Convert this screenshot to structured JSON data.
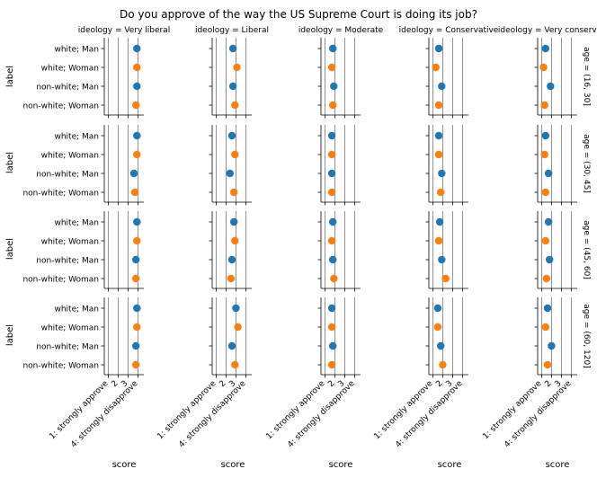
{
  "chart_data": {
    "type": "scatter",
    "title": "Do you approve of the way the US Supreme Court is doing its job?",
    "xlabel": "score",
    "ylabel": "label",
    "xlim": [
      0.6,
      4.6
    ],
    "xticks": [
      1,
      2,
      3,
      4
    ],
    "xtick_labels": [
      "1: strongly approve",
      "2",
      "3",
      "4: strongly disapprove"
    ],
    "grid": "vertical lines at x ticks",
    "legend": "none",
    "column_facet_labels": [
      "ideology = Very liberal",
      "ideology = Liberal",
      "ideology = Moderate",
      "ideology = Conservative",
      "ideology = Very conservative"
    ],
    "row_facet_labels": [
      "age = (16, 30]",
      "age = (30, 45]",
      "age = (45, 60]",
      "age = (60, 120]"
    ],
    "categories": [
      "white; Man",
      "white; Woman",
      "non-white; Man",
      "non-white; Woman"
    ],
    "category_colors": [
      "#1f77b4",
      "#ff7f0e",
      "#1f77b4",
      "#ff7f0e"
    ],
    "values": [
      [
        [
          3.9,
          3.9,
          3.9,
          3.8
        ],
        [
          2.7,
          3.1,
          2.7,
          2.9
        ],
        [
          1.8,
          1.7,
          1.9,
          1.8
        ],
        [
          1.6,
          1.3,
          1.9,
          1.6
        ],
        [
          1.4,
          1.2,
          1.9,
          1.3
        ]
      ],
      [
        [
          3.9,
          3.9,
          3.6,
          3.7
        ],
        [
          2.6,
          2.9,
          2.4,
          2.8
        ],
        [
          1.7,
          1.7,
          1.7,
          1.7
        ],
        [
          1.6,
          1.6,
          1.9,
          1.8
        ],
        [
          1.4,
          1.3,
          1.7,
          1.4
        ]
      ],
      [
        [
          3.9,
          3.9,
          3.8,
          3.8
        ],
        [
          2.8,
          2.9,
          2.6,
          2.5
        ],
        [
          1.8,
          1.7,
          1.8,
          1.9
        ],
        [
          1.7,
          1.6,
          1.9,
          2.3
        ],
        [
          1.7,
          1.4,
          1.8,
          1.5
        ]
      ],
      [
        [
          3.9,
          3.9,
          3.8,
          3.8
        ],
        [
          3.0,
          3.2,
          2.6,
          2.9
        ],
        [
          1.7,
          1.7,
          1.8,
          1.7
        ],
        [
          1.5,
          1.5,
          1.8,
          2.0
        ],
        [
          1.6,
          1.4,
          2.0,
          1.6
        ]
      ]
    ]
  }
}
